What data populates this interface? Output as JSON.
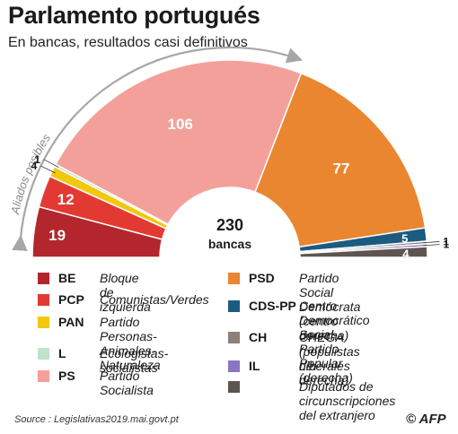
{
  "title": "Parlamento portugués",
  "subtitle": "En bancas, resultados casi definitivos",
  "center": {
    "total": "230",
    "unit": "bancas"
  },
  "arc_label": "Aliados posibles",
  "chart_data": {
    "type": "pie",
    "total": 230,
    "slices": [
      {
        "abbr": "BE",
        "name": "Bloque de izquierda",
        "value": 19,
        "label": "19",
        "color": "#b3262d"
      },
      {
        "abbr": "PCP",
        "name": "Comunistas/Verdes",
        "value": 12,
        "label": "12",
        "color": "#e23a33"
      },
      {
        "abbr": "PAN",
        "name": "Partido Personas-Animales-Naturaleza",
        "value": 4,
        "label": "4",
        "color": "#f2c80f"
      },
      {
        "abbr": "L",
        "name": "Ecologistas-socialistas",
        "value": 1,
        "label": "1",
        "color": "#bfe2c8"
      },
      {
        "abbr": "PS",
        "name": "Partido Socialista",
        "value": 106,
        "label": "106",
        "color": "#f4a09a"
      },
      {
        "abbr": "PSD",
        "name": "Partido Social Demócrata (centro derecha)",
        "value": 77,
        "label": "77",
        "color": "#ea8630"
      },
      {
        "abbr": "CDS-PP",
        "name": "Centro Democrático Social-Partido Popular (derecha)",
        "value": 5,
        "label": "5",
        "color": "#1b5b80"
      },
      {
        "abbr": "CH",
        "name": "CHEGA (populistas de derecha)",
        "value": 1,
        "label": "1",
        "color": "#8c8078"
      },
      {
        "abbr": "IL",
        "name": "Liberales",
        "value": 1,
        "label": "1",
        "color": "#8a76c0"
      },
      {
        "abbr": "",
        "name": "Diputados de circunscripciones del extranjero",
        "value": 4,
        "label": "4",
        "color": "#5f5550"
      }
    ]
  },
  "legend": {
    "left": [
      {
        "abbr": "BE",
        "name": "Bloque de izquierda",
        "color": "#b3262d"
      },
      {
        "abbr": "PCP",
        "name": "Comunistas/Verdes",
        "color": "#e23a33"
      },
      {
        "abbr": "PAN",
        "name": "Partido Personas-\nAnimales-Naturaleza",
        "color": "#f2c80f"
      },
      {
        "abbr": "L",
        "name": "Ecologistas-socialistas",
        "color": "#bfe2c8"
      },
      {
        "abbr": "PS",
        "name": "Partido Socialista",
        "color": "#f4a09a"
      }
    ],
    "right": [
      {
        "abbr": "PSD",
        "name": "Partido Social Demócrata\n(centro derecha)",
        "color": "#ea8630"
      },
      {
        "abbr": "CDS-PP",
        "name": "Centro Democrático Social-\nPartido Popular (derecha)",
        "color": "#1b5b80"
      },
      {
        "abbr": "CH",
        "name": "CHEGA (populistas\nde derecha)",
        "color": "#8c8078"
      },
      {
        "abbr": "IL",
        "name": "Liberales",
        "color": "#8a76c0"
      },
      {
        "abbr": "",
        "name": "Diputados de\ncircunscripciones\ndel extranjero",
        "color": "#5f5550"
      }
    ]
  },
  "source": "Source : Legislativas2019.mai.govt.pt",
  "credit": "© AFP"
}
